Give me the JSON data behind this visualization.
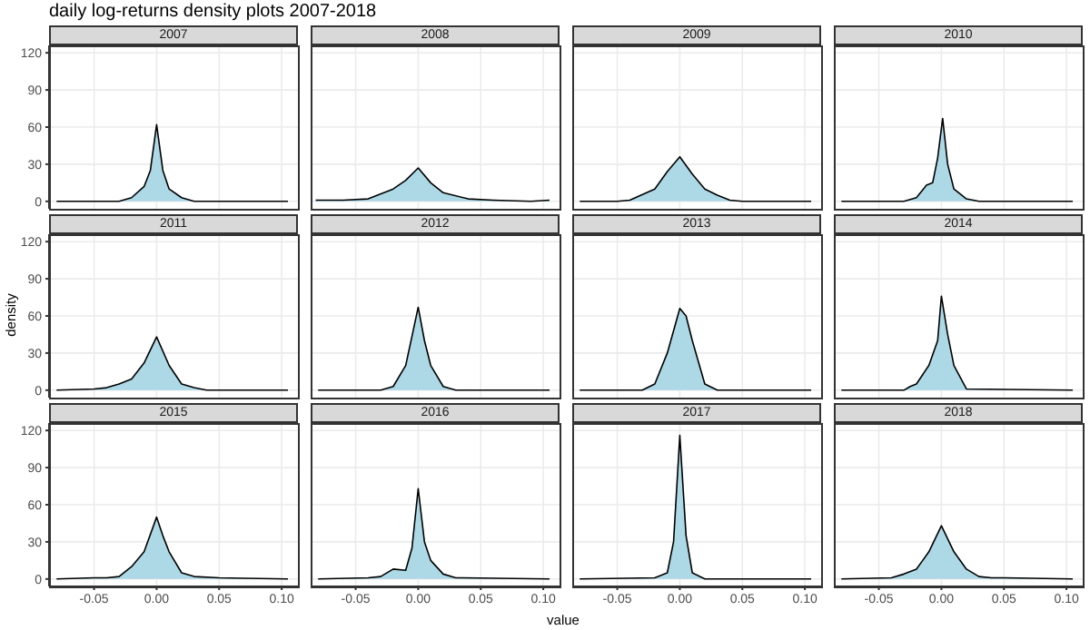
{
  "chart_data": [
    {
      "type": "area",
      "title": "2007",
      "annotations": [
        "daily log-returns density plots 2007-2018"
      ],
      "x": [
        -0.08,
        -0.03,
        -0.02,
        -0.01,
        -0.005,
        0,
        0.005,
        0.01,
        0.02,
        0.03,
        0.105
      ],
      "values": [
        0,
        0,
        3,
        12,
        25,
        62,
        25,
        10,
        3,
        0,
        0
      ],
      "color": "#add8e6",
      "xlim": [
        -0.086,
        0.113
      ],
      "xticks": [
        -0.05,
        0,
        0.05,
        0.1
      ],
      "ylim": [
        -6,
        126
      ],
      "yticks": [
        0,
        30,
        60,
        90,
        120
      ],
      "grid": true,
      "tick_labels": "y"
    },
    {
      "type": "area",
      "title": "2008",
      "x": [
        -0.082,
        -0.06,
        -0.04,
        -0.02,
        -0.01,
        0,
        0.01,
        0.02,
        0.04,
        0.06,
        0.09,
        0.105
      ],
      "values": [
        1,
        1,
        2,
        10,
        17,
        27,
        15,
        7,
        2,
        1,
        0,
        1
      ],
      "color": "#add8e6",
      "xlim": [
        -0.086,
        0.113
      ],
      "xticks": [
        -0.05,
        0,
        0.05,
        0.1
      ],
      "ylim": [
        -6,
        126
      ],
      "yticks": [
        0,
        30,
        60,
        90,
        120
      ],
      "grid": true,
      "tick_labels": false
    },
    {
      "type": "area",
      "title": "2009",
      "x": [
        -0.08,
        -0.05,
        -0.04,
        -0.02,
        -0.01,
        0,
        0.01,
        0.02,
        0.03,
        0.04,
        0.05,
        0.07,
        0.105
      ],
      "values": [
        0,
        0,
        1,
        10,
        24,
        36,
        22,
        10,
        5,
        1,
        0,
        0,
        0
      ],
      "color": "#add8e6",
      "xlim": [
        -0.086,
        0.113
      ],
      "xticks": [
        -0.05,
        0,
        0.05,
        0.1
      ],
      "ylim": [
        -6,
        126
      ],
      "yticks": [
        0,
        30,
        60,
        90,
        120
      ],
      "grid": true,
      "tick_labels": false
    },
    {
      "type": "area",
      "title": "2010",
      "x": [
        -0.08,
        -0.03,
        -0.02,
        -0.012,
        -0.007,
        -0.003,
        0.001,
        0.005,
        0.01,
        0.02,
        0.03,
        0.105
      ],
      "values": [
        0,
        0,
        3,
        13,
        15,
        35,
        67,
        30,
        10,
        2,
        0,
        0
      ],
      "color": "#add8e6",
      "xlim": [
        -0.086,
        0.113
      ],
      "xticks": [
        -0.05,
        0,
        0.05,
        0.1
      ],
      "ylim": [
        -6,
        126
      ],
      "yticks": [
        0,
        30,
        60,
        90,
        120
      ],
      "grid": true,
      "tick_labels": false
    },
    {
      "type": "area",
      "title": "2011",
      "ylabel": "density",
      "x": [
        -0.08,
        -0.05,
        -0.04,
        -0.03,
        -0.02,
        -0.01,
        0,
        0.01,
        0.02,
        0.03,
        0.04,
        0.105
      ],
      "values": [
        0,
        1,
        2,
        5,
        9,
        22,
        43,
        20,
        5,
        2,
        0,
        0
      ],
      "color": "#add8e6",
      "xlim": [
        -0.086,
        0.113
      ],
      "xticks": [
        -0.05,
        0,
        0.05,
        0.1
      ],
      "ylim": [
        -6,
        126
      ],
      "yticks": [
        0,
        30,
        60,
        90,
        120
      ],
      "grid": true,
      "tick_labels": "y"
    },
    {
      "type": "area",
      "title": "2012",
      "x": [
        -0.08,
        -0.03,
        -0.02,
        -0.01,
        0,
        0.005,
        0.01,
        0.02,
        0.03,
        0.105
      ],
      "values": [
        0,
        0,
        3,
        20,
        67,
        40,
        20,
        3,
        0,
        0
      ],
      "color": "#add8e6",
      "xlim": [
        -0.086,
        0.113
      ],
      "xticks": [
        -0.05,
        0,
        0.05,
        0.1
      ],
      "ylim": [
        -6,
        126
      ],
      "yticks": [
        0,
        30,
        60,
        90,
        120
      ],
      "grid": true,
      "tick_labels": false
    },
    {
      "type": "area",
      "title": "2013",
      "x": [
        -0.08,
        -0.03,
        -0.02,
        -0.01,
        0,
        0.005,
        0.01,
        0.02,
        0.03,
        0.105
      ],
      "values": [
        0,
        0,
        5,
        30,
        66,
        60,
        40,
        5,
        0,
        0
      ],
      "color": "#add8e6",
      "xlim": [
        -0.086,
        0.113
      ],
      "xticks": [
        -0.05,
        0,
        0.05,
        0.1
      ],
      "ylim": [
        -6,
        126
      ],
      "yticks": [
        0,
        30,
        60,
        90,
        120
      ],
      "grid": true,
      "tick_labels": false
    },
    {
      "type": "area",
      "title": "2014",
      "x": [
        -0.08,
        -0.03,
        -0.025,
        -0.02,
        -0.01,
        -0.003,
        0,
        0.005,
        0.01,
        0.02,
        0.105
      ],
      "values": [
        0,
        0,
        3,
        5,
        20,
        40,
        76,
        45,
        20,
        1,
        0
      ],
      "color": "#add8e6",
      "xlim": [
        -0.086,
        0.113
      ],
      "xticks": [
        -0.05,
        0,
        0.05,
        0.1
      ],
      "ylim": [
        -6,
        126
      ],
      "yticks": [
        0,
        30,
        60,
        90,
        120
      ],
      "grid": true,
      "tick_labels": false
    },
    {
      "type": "area",
      "title": "2015",
      "x": [
        -0.08,
        -0.05,
        -0.04,
        -0.03,
        -0.02,
        -0.01,
        0,
        0.005,
        0.01,
        0.02,
        0.03,
        0.05,
        0.105
      ],
      "values": [
        0,
        1,
        1,
        2,
        10,
        22,
        50,
        35,
        22,
        5,
        2,
        1,
        0
      ],
      "color": "#add8e6",
      "xlim": [
        -0.086,
        0.113
      ],
      "xticks": [
        {
          "value": -0.05,
          "label": "-0.05"
        },
        {
          "value": 0,
          "label": "0.00"
        },
        {
          "value": 0.05,
          "label": "0.05"
        },
        {
          "value": 0.1,
          "label": "0.10"
        }
      ],
      "ylim": [
        -6,
        126
      ],
      "yticks": [
        0,
        30,
        60,
        90,
        120
      ],
      "grid": true
    },
    {
      "type": "area",
      "title": "2016",
      "xlabel": "value",
      "x": [
        -0.08,
        -0.04,
        -0.03,
        -0.02,
        -0.01,
        -0.005,
        0,
        0.005,
        0.01,
        0.02,
        0.03,
        0.105
      ],
      "values": [
        0,
        1,
        2,
        8,
        7,
        25,
        73,
        30,
        15,
        4,
        1,
        0
      ],
      "color": "#add8e6",
      "xlim": [
        -0.086,
        0.113
      ],
      "xticks": [
        {
          "value": -0.05,
          "label": "-0.05"
        },
        {
          "value": 0,
          "label": "0.00"
        },
        {
          "value": 0.05,
          "label": "0.05"
        },
        {
          "value": 0.1,
          "label": "0.10"
        }
      ],
      "ylim": [
        -6,
        126
      ],
      "yticks": [
        0,
        30,
        60,
        90,
        120
      ],
      "grid": true,
      "tick_labels": "x"
    },
    {
      "type": "area",
      "title": "2017",
      "x": [
        -0.08,
        -0.02,
        -0.01,
        -0.005,
        0,
        0.005,
        0.01,
        0.02,
        0.105
      ],
      "values": [
        0,
        1,
        5,
        30,
        116,
        35,
        5,
        0,
        0
      ],
      "color": "#add8e6",
      "xlim": [
        -0.086,
        0.113
      ],
      "xticks": [
        {
          "value": -0.05,
          "label": "-0.05"
        },
        {
          "value": 0,
          "label": "0.00"
        },
        {
          "value": 0.05,
          "label": "0.05"
        },
        {
          "value": 0.1,
          "label": "0.10"
        }
      ],
      "ylim": [
        -6,
        126
      ],
      "yticks": [
        0,
        30,
        60,
        90,
        120
      ],
      "grid": true,
      "tick_labels": "x"
    },
    {
      "type": "area",
      "title": "2018",
      "x": [
        -0.08,
        -0.04,
        -0.03,
        -0.02,
        -0.01,
        0,
        0.01,
        0.02,
        0.03,
        0.04,
        0.05,
        0.105
      ],
      "values": [
        0,
        1,
        4,
        8,
        22,
        43,
        22,
        8,
        2,
        1,
        1,
        0
      ],
      "color": "#add8e6",
      "xlim": [
        -0.086,
        0.113
      ],
      "xticks": [
        {
          "value": -0.05,
          "label": "-0.05"
        },
        {
          "value": 0,
          "label": "0.00"
        },
        {
          "value": 0.05,
          "label": "0.05"
        },
        {
          "value": 0.1,
          "label": "0.10"
        }
      ],
      "ylim": [
        -6,
        126
      ],
      "yticks": [
        0,
        30,
        60,
        90,
        120
      ],
      "grid": true,
      "tick_labels": "x"
    }
  ]
}
